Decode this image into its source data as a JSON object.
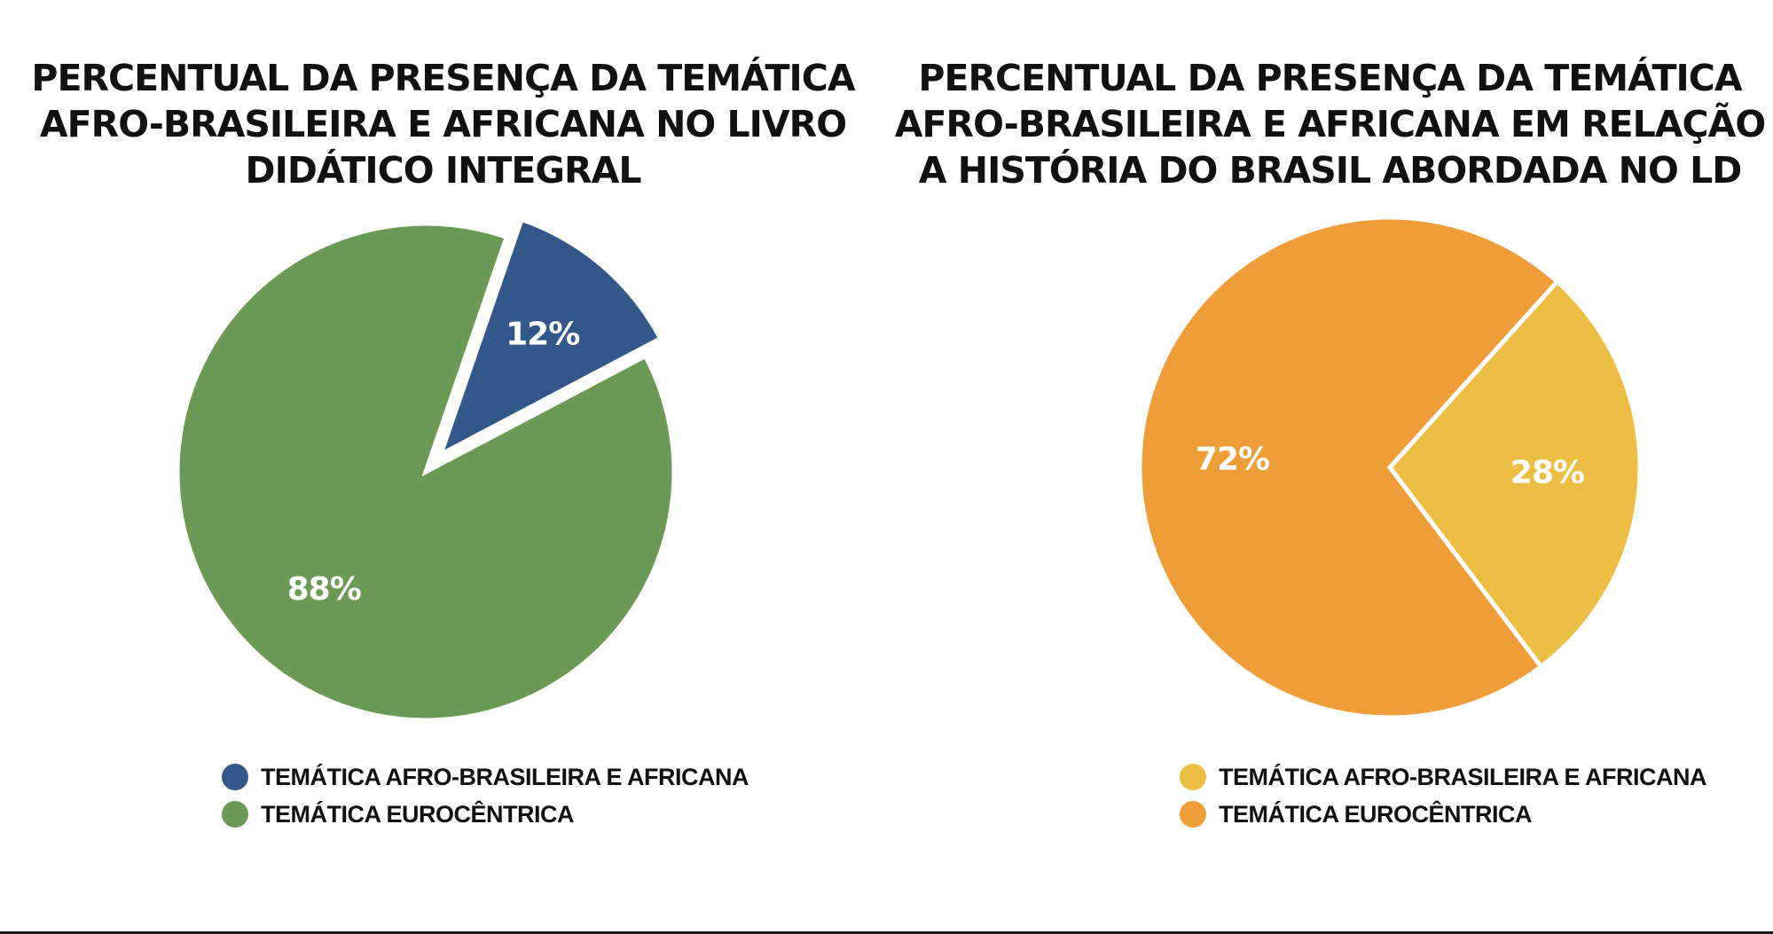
{
  "chart_data": [
    {
      "type": "pie",
      "title": "PERCENTUAL DA PRESENÇA DA TEMÁTICA\nAFRO-BRASILEIRA E AFRICANA NO LIVRO\nDIDÁTICO INTEGRAL",
      "slices": [
        {
          "label": "TEMÁTICA AFRO-BRASILEIRA E AFRICANA",
          "value": 12,
          "display": "12%",
          "color": "#345789",
          "exploded": true
        },
        {
          "label": "TEMÁTICA EUROCÊNTRICA",
          "value": 88,
          "display": "88%",
          "color": "#6a9a55",
          "exploded": false
        }
      ],
      "legend_position": "bottom"
    },
    {
      "type": "pie",
      "title": "PERCENTUAL DA PRESENÇA DA TEMÁTICA\nAFRO-BRASILEIRA E AFRICANA EM RELAÇÃO\nA HISTÓRIA DO BRASIL ABORDADA NO LD",
      "slices": [
        {
          "label": "TEMÁTICA AFRO-BRASILEIRA E AFRICANA",
          "value": 28,
          "display": "28%",
          "color": "#ecbf44",
          "exploded": false
        },
        {
          "label": "TEMÁTICA EUROCÊNTRICA",
          "value": 72,
          "display": "72%",
          "color": "#ee9d39",
          "exploded": false
        }
      ],
      "legend_position": "bottom"
    }
  ]
}
